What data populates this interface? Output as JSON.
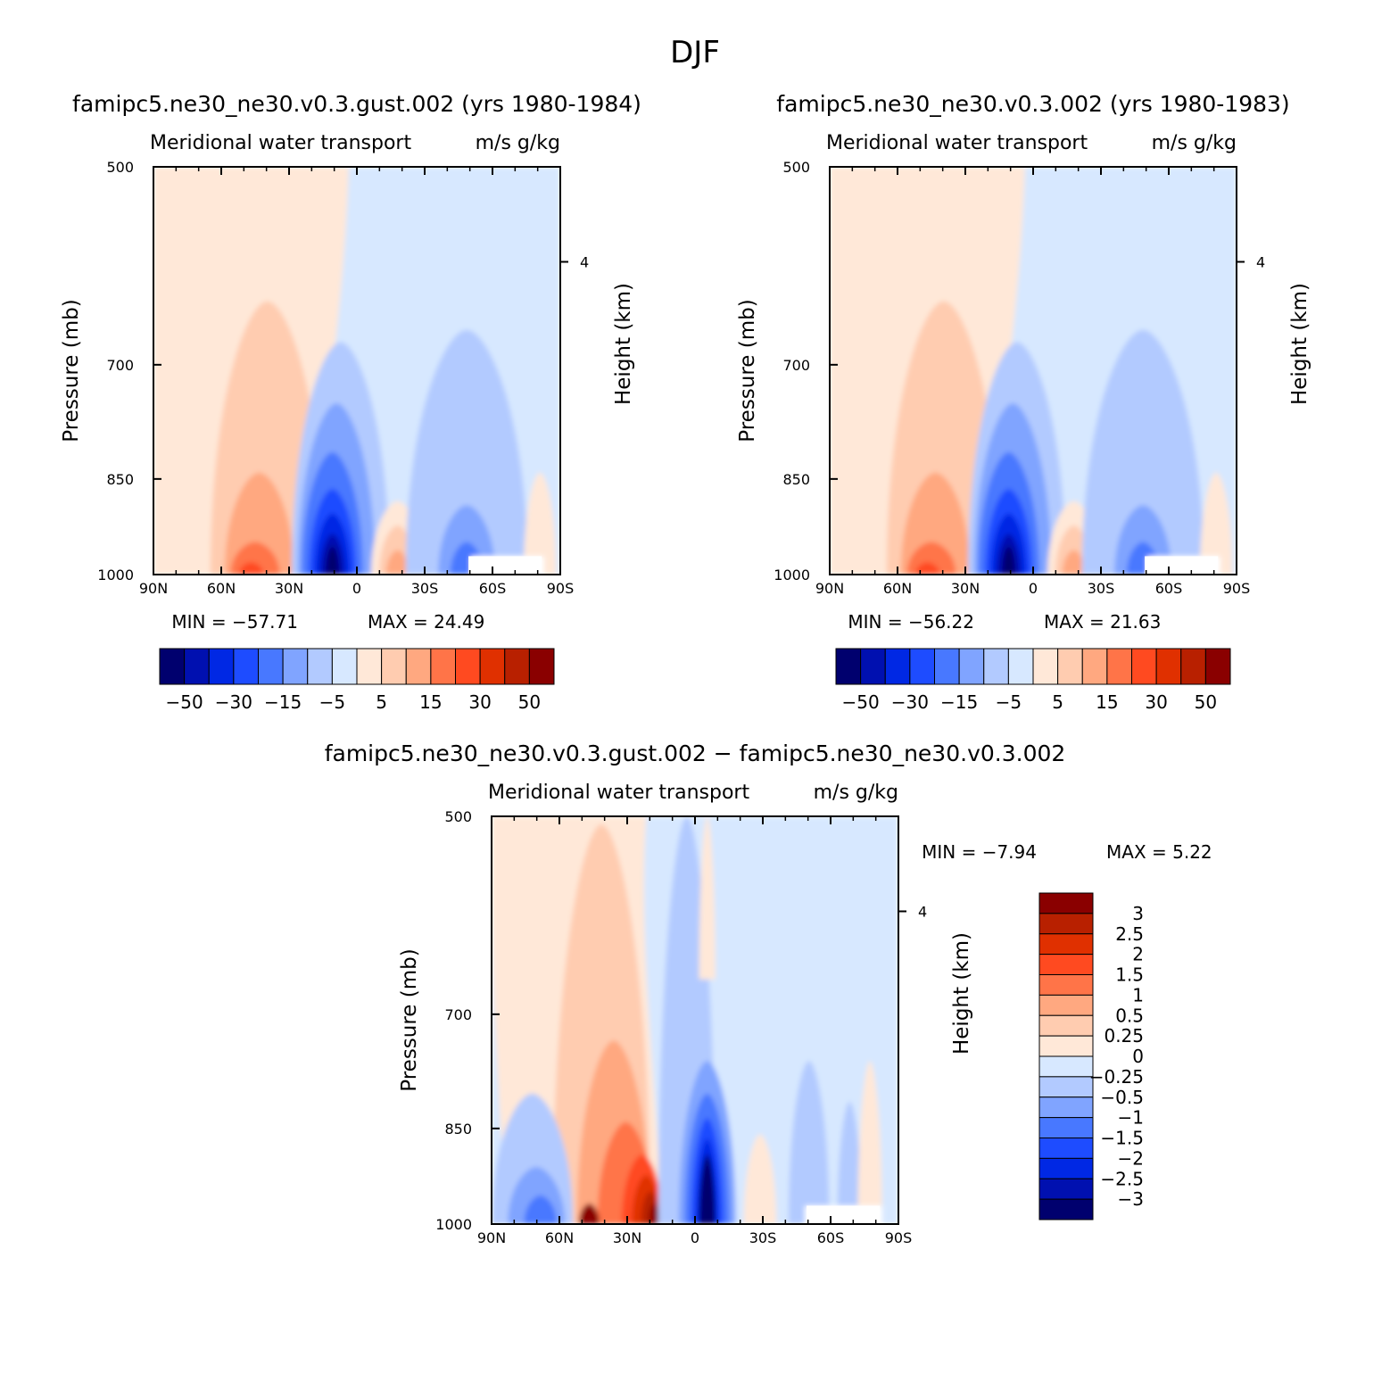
{
  "figure_title": "DJF",
  "colors": {
    "abs_levels": [
      "#00006e",
      "#0010b0",
      "#0028e4",
      "#1e4cff",
      "#4878ff",
      "#80a4ff",
      "#b2caff",
      "#d7e8ff",
      "#ffe8d8",
      "#ffccb0",
      "#ffa880",
      "#ff7448",
      "#ff4a20",
      "#e03000",
      "#b82000",
      "#8a0000"
    ],
    "diff_levels": [
      "#00006e",
      "#0010b0",
      "#0028e4",
      "#1e4cff",
      "#4878ff",
      "#80a4ff",
      "#b2caff",
      "#d7e8ff",
      "#ffe8d8",
      "#ffccb0",
      "#ffa880",
      "#ff7448",
      "#ff4a20",
      "#e03000",
      "#b82000",
      "#8a0000"
    ]
  },
  "chart_data": [
    {
      "type": "heatmap",
      "title": "famipc5.ne30_ne30.v0.3.gust.002 (yrs 1980-1984)",
      "variable_label": "Meridional water transport",
      "units_label": "m/s g/kg",
      "ylabel": "Pressure (mb)",
      "ylabel_right": "Height (km)",
      "x_ticks": [
        "90N",
        "60N",
        "30N",
        "0",
        "30S",
        "60S",
        "90S"
      ],
      "y_ticks": [
        "500",
        "700",
        "850",
        "1000"
      ],
      "y_ticks_right": [
        "4"
      ],
      "ylim": [
        1000,
        500
      ],
      "xlim": [
        "90N",
        "90S"
      ],
      "min_label": "MIN = −57.71",
      "max_label": "MAX =  24.49",
      "min": -57.71,
      "max": 24.49,
      "colorbar_labels": [
        "−50",
        "−30",
        "−15",
        "−5",
        "5",
        "15",
        "30",
        "50"
      ],
      "contour_levels": [
        -50,
        -40,
        -30,
        -20,
        -15,
        -10,
        -5,
        0,
        5,
        10,
        15,
        20,
        30,
        40,
        50
      ]
    },
    {
      "type": "heatmap",
      "title": "famipc5.ne30_ne30.v0.3.002 (yrs 1980-1983)",
      "variable_label": "Meridional water transport",
      "units_label": "m/s g/kg",
      "ylabel": "Pressure (mb)",
      "ylabel_right": "Height (km)",
      "x_ticks": [
        "90N",
        "60N",
        "30N",
        "0",
        "30S",
        "60S",
        "90S"
      ],
      "y_ticks": [
        "500",
        "700",
        "850",
        "1000"
      ],
      "y_ticks_right": [
        "4"
      ],
      "ylim": [
        1000,
        500
      ],
      "xlim": [
        "90N",
        "90S"
      ],
      "min_label": "MIN = −56.22",
      "max_label": "MAX =  21.63",
      "min": -56.22,
      "max": 21.63,
      "colorbar_labels": [
        "−50",
        "−30",
        "−15",
        "−5",
        "5",
        "15",
        "30",
        "50"
      ],
      "contour_levels": [
        -50,
        -40,
        -30,
        -20,
        -15,
        -10,
        -5,
        0,
        5,
        10,
        15,
        20,
        30,
        40,
        50
      ]
    },
    {
      "type": "heatmap",
      "title": "famipc5.ne30_ne30.v0.3.gust.002 − famipc5.ne30_ne30.v0.3.002",
      "variable_label": "Meridional water transport",
      "units_label": "m/s g/kg",
      "ylabel": "Pressure (mb)",
      "ylabel_right": "Height (km)",
      "x_ticks": [
        "90N",
        "60N",
        "30N",
        "0",
        "30S",
        "60S",
        "90S"
      ],
      "y_ticks": [
        "500",
        "700",
        "850",
        "1000"
      ],
      "y_ticks_right": [
        "4"
      ],
      "ylim": [
        1000,
        500
      ],
      "xlim": [
        "90N",
        "90S"
      ],
      "min_label": "MIN =   −7.94",
      "max_label": "MAX =    5.22",
      "min": -7.94,
      "max": 5.22,
      "colorbar_labels": [
        "3",
        "2.5",
        "2",
        "1.5",
        "1",
        "0.5",
        "0.25",
        "0",
        "−0.25",
        "−0.5",
        "−1",
        "−1.5",
        "−2",
        "−2.5",
        "−3"
      ],
      "contour_levels": [
        -3,
        -2.5,
        -2,
        -1.5,
        -1,
        -0.5,
        -0.25,
        0,
        0.25,
        0.5,
        1,
        1.5,
        2,
        2.5,
        3
      ]
    }
  ]
}
